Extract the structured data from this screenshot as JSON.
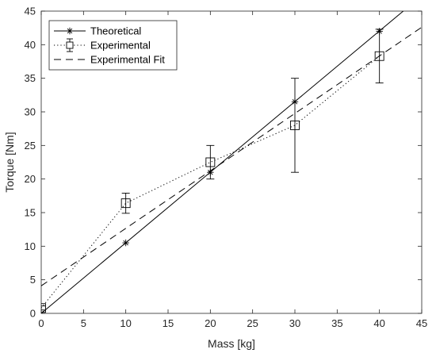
{
  "chart_data": {
    "type": "line",
    "xlabel": "Mass [kg]",
    "ylabel": "Torque [Nm]",
    "xlim": [
      0,
      45
    ],
    "ylim": [
      0,
      45
    ],
    "xticks": [
      0,
      5,
      10,
      15,
      20,
      25,
      30,
      35,
      40,
      45
    ],
    "yticks": [
      0,
      5,
      10,
      15,
      20,
      25,
      30,
      35,
      40,
      45
    ],
    "grid": false,
    "legend_position": "top-left",
    "series": [
      {
        "name": "Theoretical",
        "style": "solid",
        "marker": "asterisk",
        "color": "#000000",
        "line": {
          "x": [
            0,
            45
          ],
          "y": [
            0,
            47.3
          ]
        },
        "points": {
          "x": [
            0,
            10,
            20,
            30,
            40
          ],
          "y": [
            0,
            10.5,
            21.0,
            31.5,
            42.0
          ]
        }
      },
      {
        "name": "Experimental",
        "style": "dotted",
        "marker": "square",
        "color": "#000000",
        "x": [
          0,
          10,
          20,
          30,
          40
        ],
        "y": [
          0.8,
          16.4,
          22.5,
          28.0,
          38.3
        ],
        "error": [
          0.3,
          1.5,
          2.5,
          7.0,
          4.0
        ]
      },
      {
        "name": "Experimental Fit",
        "style": "dashed",
        "color": "#000000",
        "line": {
          "x": [
            0,
            45
          ],
          "y": [
            4.1,
            42.6
          ]
        }
      }
    ]
  }
}
